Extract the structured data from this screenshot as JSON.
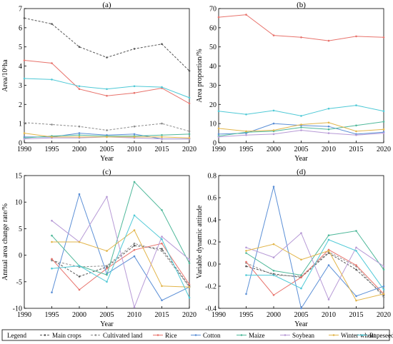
{
  "colors": {
    "main_crops": "#555555",
    "cultivated_land": "#8c8c8c",
    "rice": "#e8736c",
    "cotton": "#5b8fd6",
    "maize": "#4fb89a",
    "soybean": "#b79ad6",
    "winter_wheat": "#e2b54a",
    "rapeseed": "#4fc9d6"
  },
  "legend": {
    "title": "Legend",
    "items": [
      {
        "key": "main_crops",
        "label": "Main crops",
        "dash": true
      },
      {
        "key": "cultivated_land",
        "label": "Cultivated land",
        "dash": true
      },
      {
        "key": "rice",
        "label": "Rice",
        "dash": false
      },
      {
        "key": "cotton",
        "label": "Cotton",
        "dash": false
      },
      {
        "key": "maize",
        "label": "Maize",
        "dash": false
      },
      {
        "key": "soybean",
        "label": "Soybean",
        "dash": false
      },
      {
        "key": "winter_wheat",
        "label": "Winter wheat",
        "dash": false
      },
      {
        "key": "rapeseed",
        "label": "Rapeseed",
        "dash": false
      }
    ]
  },
  "chart_data": [
    {
      "type": "line",
      "title": "(a)",
      "xlabel": "Year",
      "ylabel": "Area/10⁶ha",
      "x": [
        1990,
        1995,
        2000,
        2005,
        2010,
        2015,
        2020
      ],
      "xlim": [
        1990,
        2020
      ],
      "ylim": [
        0,
        7
      ],
      "xticks": [
        1990,
        1995,
        2000,
        2005,
        2010,
        2015,
        2020
      ],
      "yticks": [
        0,
        1,
        2,
        3,
        4,
        5,
        6,
        7
      ],
      "series": [
        {
          "key": "main_crops",
          "name": "Main crops",
          "values": [
            6.5,
            6.2,
            5.0,
            4.45,
            4.9,
            5.15,
            3.75
          ]
        },
        {
          "key": "cultivated_land",
          "name": "Cultivated land",
          "values": [
            1.05,
            0.95,
            0.85,
            0.65,
            0.85,
            1.0,
            0.6
          ]
        },
        {
          "key": "rice",
          "name": "Rice",
          "values": [
            4.3,
            4.15,
            2.8,
            2.45,
            2.6,
            2.85,
            2.05
          ]
        },
        {
          "key": "cotton",
          "name": "Cotton",
          "values": [
            0.3,
            0.3,
            0.5,
            0.4,
            0.45,
            0.2,
            0.2
          ]
        },
        {
          "key": "maize",
          "name": "Maize",
          "values": [
            0.25,
            0.35,
            0.4,
            0.35,
            0.35,
            0.4,
            0.45
          ]
        },
        {
          "key": "soybean",
          "name": "Soybean",
          "values": [
            0.2,
            0.25,
            0.25,
            0.3,
            0.25,
            0.2,
            0.2
          ]
        },
        {
          "key": "winter_wheat",
          "name": "Winter wheat",
          "values": [
            0.5,
            0.3,
            0.3,
            0.3,
            0.3,
            0.3,
            0.25
          ]
        },
        {
          "key": "rapeseed",
          "name": "Rapeseed",
          "values": [
            3.35,
            3.3,
            2.95,
            2.8,
            2.95,
            2.9,
            2.35
          ]
        }
      ]
    },
    {
      "type": "line",
      "title": "(b)",
      "xlabel": "Year",
      "ylabel": "Area proportion/%",
      "x": [
        1990,
        1995,
        2000,
        2005,
        2010,
        2015,
        2020
      ],
      "xlim": [
        1990,
        2020
      ],
      "ylim": [
        0,
        70
      ],
      "xticks": [
        1990,
        1995,
        2000,
        2005,
        2010,
        2015,
        2020
      ],
      "yticks": [
        0,
        10,
        20,
        30,
        40,
        50,
        60,
        70
      ],
      "series": [
        {
          "key": "rice",
          "name": "Rice",
          "values": [
            65.5,
            66.8,
            56.0,
            55.0,
            53.2,
            55.5,
            55.0
          ]
        },
        {
          "key": "rapeseed",
          "name": "Rapeseed",
          "values": [
            16.5,
            14.8,
            16.8,
            14.0,
            17.8,
            19.5,
            16.5
          ]
        },
        {
          "key": "cotton",
          "name": "Cotton",
          "values": [
            4.5,
            5.0,
            10.0,
            9.0,
            8.5,
            4.5,
            5.5
          ]
        },
        {
          "key": "maize",
          "name": "Maize",
          "values": [
            3.5,
            5.5,
            6.0,
            8.0,
            7.0,
            9.0,
            11.0
          ]
        },
        {
          "key": "soybean",
          "name": "Soybean",
          "values": [
            3.0,
            4.0,
            4.5,
            6.5,
            5.0,
            4.0,
            5.0
          ]
        },
        {
          "key": "winter_wheat",
          "name": "Winter wheat",
          "values": [
            7.5,
            6.0,
            6.5,
            9.5,
            10.5,
            6.0,
            7.0
          ]
        }
      ]
    },
    {
      "type": "line",
      "title": "(c)",
      "xlabel": "Year",
      "ylabel": "Annual area change rate/%",
      "x": [
        1995,
        2000,
        2005,
        2010,
        2015,
        2020
      ],
      "xlim": [
        1990,
        2020
      ],
      "ylim": [
        -10,
        15
      ],
      "xticks": [
        1990,
        1995,
        2000,
        2005,
        2010,
        2015,
        2020
      ],
      "yticks": [
        -10,
        -5,
        0,
        5,
        10,
        15
      ],
      "series": [
        {
          "key": "main_crops",
          "name": "Main crops",
          "values": [
            -0.8,
            -4.0,
            -2.2,
            1.8,
            1.2,
            -5.8
          ]
        },
        {
          "key": "cultivated_land",
          "name": "Cultivated land",
          "values": [
            -1.0,
            -2.2,
            -2.0,
            2.2,
            0.8,
            -6.0
          ]
        },
        {
          "key": "rice",
          "name": "Rice",
          "values": [
            -0.7,
            -6.5,
            -2.5,
            1.0,
            2.2,
            -5.5
          ]
        },
        {
          "key": "cotton",
          "name": "Cotton",
          "values": [
            -7.0,
            11.5,
            -3.5,
            -0.2,
            -8.5,
            -6.0
          ]
        },
        {
          "key": "maize",
          "name": "Maize",
          "values": [
            3.7,
            -2.0,
            -3.7,
            13.8,
            8.5,
            -1.5
          ]
        },
        {
          "key": "soybean",
          "name": "Soybean",
          "values": [
            6.5,
            2.5,
            11.0,
            -9.8,
            3.5,
            -0.8
          ]
        },
        {
          "key": "winter_wheat",
          "name": "Winter wheat",
          "values": [
            2.5,
            2.5,
            0.8,
            4.7,
            -5.8,
            -6.0
          ]
        },
        {
          "key": "rapeseed",
          "name": "Rapeseed",
          "values": [
            -2.5,
            -2.0,
            -5.0,
            7.5,
            3.0,
            -8.0
          ]
        }
      ]
    },
    {
      "type": "line",
      "title": "(d)",
      "xlabel": "Year",
      "ylabel": "Variable dynamic attitude",
      "x": [
        1995,
        2000,
        2005,
        2010,
        2015,
        2020
      ],
      "xlim": [
        1990,
        2020
      ],
      "ylim": [
        -0.4,
        0.8
      ],
      "xticks": [
        1990,
        1995,
        2000,
        2005,
        2010,
        2015,
        2020
      ],
      "yticks": [
        -0.4,
        -0.2,
        0.0,
        0.2,
        0.4,
        0.6,
        0.8
      ],
      "series": [
        {
          "key": "main_crops",
          "name": "Main crops",
          "values": [
            -0.02,
            -0.09,
            -0.12,
            0.1,
            -0.05,
            -0.28
          ]
        },
        {
          "key": "cultivated_land",
          "name": "Cultivated land",
          "values": [
            0.01,
            -0.1,
            -0.11,
            0.11,
            -0.02,
            -0.3
          ]
        },
        {
          "key": "rice",
          "name": "Rice",
          "values": [
            0.02,
            -0.28,
            -0.12,
            0.13,
            -0.01,
            -0.27
          ]
        },
        {
          "key": "cotton",
          "name": "Cotton",
          "values": [
            -0.27,
            0.7,
            -0.4,
            -0.01,
            -0.29,
            -0.2
          ]
        },
        {
          "key": "maize",
          "name": "Maize",
          "values": [
            0.1,
            -0.06,
            -0.1,
            0.26,
            0.3,
            -0.05
          ]
        },
        {
          "key": "soybean",
          "name": "Soybean",
          "values": [
            0.15,
            0.06,
            0.28,
            -0.32,
            0.15,
            -0.02
          ]
        },
        {
          "key": "winter_wheat",
          "name": "Winter wheat",
          "values": [
            0.12,
            0.18,
            0.04,
            0.12,
            -0.33,
            -0.27
          ]
        },
        {
          "key": "rapeseed",
          "name": "Rapeseed",
          "values": [
            -0.1,
            -0.1,
            -0.22,
            0.22,
            0.12,
            -0.23
          ]
        }
      ]
    }
  ]
}
